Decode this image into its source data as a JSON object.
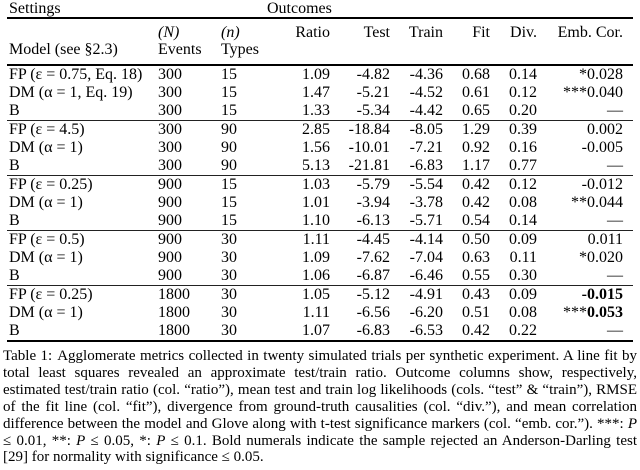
{
  "page": {
    "background": "#ffffff",
    "text_color": "#000000"
  },
  "table": {
    "group_header": {
      "settings": "Settings",
      "outcomes": "Outcomes"
    },
    "col_headers": {
      "model": "Model (see §2.3)",
      "events_top": "(N)",
      "events_bottom": "Events",
      "types_top": "(n)",
      "types_bottom": "Types",
      "ratio": "Ratio",
      "test": "Test",
      "train": "Train",
      "fit": "Fit",
      "div": "Div.",
      "emb_cor": "Emb. Cor."
    },
    "rows": [
      {
        "model": "FP (ε = 0.75, Eq. 18)",
        "events": "300",
        "types": "15",
        "ratio": "1.09",
        "test": "-4.82",
        "train": "-4.36",
        "fit": "0.68",
        "div": "0.14",
        "emb_stars": "*",
        "emb_value": "0.028",
        "emb_bold": false
      },
      {
        "model": "DM (α = 1, Eq. 19)",
        "events": "300",
        "types": "15",
        "ratio": "1.47",
        "test": "-5.21",
        "train": "-4.52",
        "fit": "0.61",
        "div": "0.12",
        "emb_stars": "***",
        "emb_value": "0.040",
        "emb_bold": false
      },
      {
        "model": "B",
        "events": "300",
        "types": "15",
        "ratio": "1.33",
        "test": "-5.34",
        "train": "-4.42",
        "fit": "0.65",
        "div": "0.20",
        "emb_stars": "",
        "emb_value": "—",
        "emb_bold": false
      },
      {
        "model": "FP (ε = 4.5)",
        "events": "300",
        "types": "90",
        "ratio": "2.85",
        "test": "-18.84",
        "train": "-8.05",
        "fit": "1.29",
        "div": "0.39",
        "emb_stars": "",
        "emb_value": "0.002",
        "emb_bold": false
      },
      {
        "model": "DM (α = 1)",
        "events": "300",
        "types": "90",
        "ratio": "1.56",
        "test": "-10.01",
        "train": "-7.21",
        "fit": "0.92",
        "div": "0.16",
        "emb_stars": "",
        "emb_value": "-0.005",
        "emb_bold": false
      },
      {
        "model": "B",
        "events": "300",
        "types": "90",
        "ratio": "5.13",
        "test": "-21.81",
        "train": "-6.83",
        "fit": "1.17",
        "div": "0.77",
        "emb_stars": "",
        "emb_value": "—",
        "emb_bold": false
      },
      {
        "model": "FP (ε = 0.25)",
        "events": "900",
        "types": "15",
        "ratio": "1.03",
        "test": "-5.79",
        "train": "-5.54",
        "fit": "0.42",
        "div": "0.12",
        "emb_stars": "",
        "emb_value": "-0.012",
        "emb_bold": false
      },
      {
        "model": "DM (α = 1)",
        "events": "900",
        "types": "15",
        "ratio": "1.01",
        "test": "-3.94",
        "train": "-3.78",
        "fit": "0.42",
        "div": "0.08",
        "emb_stars": "**",
        "emb_value": "0.044",
        "emb_bold": false
      },
      {
        "model": "B",
        "events": "900",
        "types": "15",
        "ratio": "1.10",
        "test": "-6.13",
        "train": "-5.71",
        "fit": "0.54",
        "div": "0.14",
        "emb_stars": "",
        "emb_value": "—",
        "emb_bold": false
      },
      {
        "model": "FP (ε = 0.5)",
        "events": "900",
        "types": "30",
        "ratio": "1.11",
        "test": "-4.45",
        "train": "-4.14",
        "fit": "0.50",
        "div": "0.09",
        "emb_stars": "",
        "emb_value": "0.011",
        "emb_bold": false
      },
      {
        "model": "DM (α = 1)",
        "events": "900",
        "types": "30",
        "ratio": "1.09",
        "test": "-7.62",
        "train": "-7.04",
        "fit": "0.63",
        "div": "0.11",
        "emb_stars": "*",
        "emb_value": "0.020",
        "emb_bold": false
      },
      {
        "model": "B",
        "events": "900",
        "types": "30",
        "ratio": "1.06",
        "test": "-6.87",
        "train": "-6.46",
        "fit": "0.55",
        "div": "0.30",
        "emb_stars": "",
        "emb_value": "—",
        "emb_bold": false
      },
      {
        "model": "FP (ε = 0.25)",
        "events": "1800",
        "types": "30",
        "ratio": "1.05",
        "test": "-5.12",
        "train": "-4.91",
        "fit": "0.43",
        "div": "0.09",
        "emb_stars": "",
        "emb_value": "-0.015",
        "emb_bold": true
      },
      {
        "model": "DM (α = 1)",
        "events": "1800",
        "types": "30",
        "ratio": "1.11",
        "test": "-6.56",
        "train": "-6.20",
        "fit": "0.51",
        "div": "0.08",
        "emb_stars": "***",
        "emb_value": "0.053",
        "emb_bold": true
      },
      {
        "model": "B",
        "events": "1800",
        "types": "30",
        "ratio": "1.07",
        "test": "-6.83",
        "train": "-6.53",
        "fit": "0.42",
        "div": "0.22",
        "emb_stars": "",
        "emb_value": "—",
        "emb_bold": false
      }
    ]
  },
  "caption": {
    "label": "Table 1:",
    "body": "Agglomerate metrics collected in twenty simulated trials per synthetic experiment. A line fit by total least squares revealed an approximate test/train ratio. Outcome columns show, respectively, estimated test/train ratio (col. “ratio”), mean test and train log likelihoods (cols. “test” & “train”), RMSE of the fit line (col. “fit”), divergence from ground-truth causalities (col. “div.”), and mean correlation difference between the model and Glove along with t-test significance markers (col. “emb. cor.”). ***: ",
    "p": "P",
    "sig1": " ≤ 0.01, **: ",
    "sig2": " ≤ 0.05, *: ",
    "sig3": " ≤ 0.1. Bold numerals indicate the sample rejected an Anderson-Darling test [29] for normality with significance ≤ 0.05."
  }
}
